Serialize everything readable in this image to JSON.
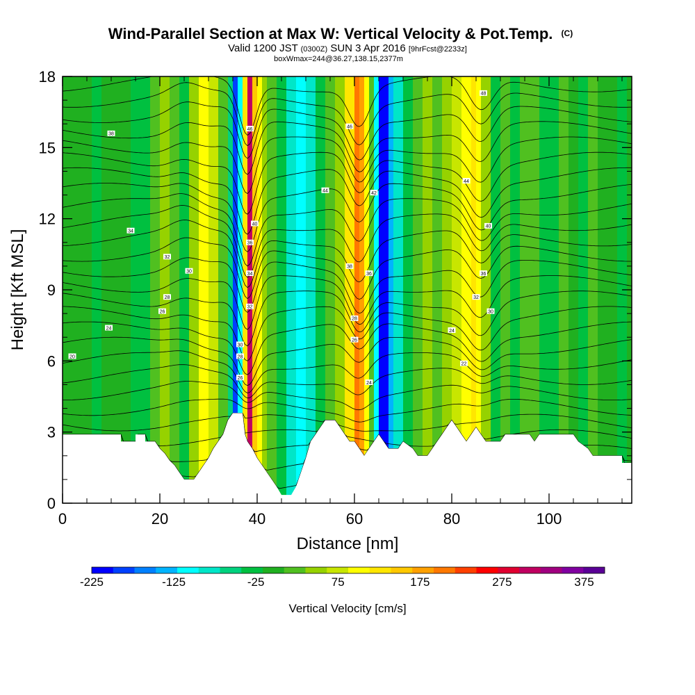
{
  "chart_data": {
    "type": "heatmap",
    "title": "Wind-Parallel Section at Max W: Vertical Velocity & Pot.Temp.",
    "title_mark": "(C)",
    "subtitle": {
      "valid_prefix": "Valid 1200 JST",
      "utc": "(0300Z)",
      "date": "SUN 3 Apr 2016",
      "forecast": "[9hrFcst@2233z]"
    },
    "box_line": "boxWmax=244@36.27,138.15,2377m",
    "xlabel": "Distance [nm]",
    "ylabel": "Height [Kft MSL]",
    "xlim": [
      0,
      117
    ],
    "ylim": [
      0,
      18
    ],
    "x_ticks": [
      "0",
      "20",
      "40",
      "60",
      "80",
      "100"
    ],
    "y_ticks": [
      "0",
      "3",
      "6",
      "9",
      "12",
      "15",
      "18"
    ],
    "colorbar": {
      "label": "Vertical Velocity [cm/s]",
      "range": [
        -225,
        400
      ],
      "tick_labels": [
        "-225",
        "-125",
        "-25",
        "75",
        "175",
        "275",
        "375"
      ],
      "colors": [
        "#0000ff",
        "#0040ff",
        "#0080ff",
        "#00b4ff",
        "#00ffff",
        "#00e6c8",
        "#00d27e",
        "#00c040",
        "#20b020",
        "#50c020",
        "#96d200",
        "#c8e600",
        "#ffff00",
        "#ffe600",
        "#ffc800",
        "#ffa000",
        "#ff7800",
        "#ff4000",
        "#ff0000",
        "#e00030",
        "#c00060",
        "#a00080",
        "#8000a0",
        "#5a0096"
      ]
    },
    "color_bands": [
      {
        "x": 0,
        "w": -10
      },
      {
        "x": 2,
        "w": -15
      },
      {
        "x": 4,
        "w": -8
      },
      {
        "x": 6,
        "w": -20
      },
      {
        "x": 8,
        "w": -5
      },
      {
        "x": 10,
        "w": -12
      },
      {
        "x": 12,
        "w": 8
      },
      {
        "x": 14,
        "w": -18
      },
      {
        "x": 16,
        "w": -25
      },
      {
        "x": 18,
        "w": 35
      },
      {
        "x": 20,
        "w": 50
      },
      {
        "x": 22,
        "w": 10
      },
      {
        "x": 24,
        "w": -30
      },
      {
        "x": 26,
        "w": 40
      },
      {
        "x": 28,
        "w": 90
      },
      {
        "x": 30,
        "w": 70
      },
      {
        "x": 32,
        "w": 20
      },
      {
        "x": 34,
        "w": -60
      },
      {
        "x": 35,
        "w": -180
      },
      {
        "x": 36,
        "w": -120
      },
      {
        "x": 37,
        "w": 130
      },
      {
        "x": 38,
        "w": 300
      },
      {
        "x": 39,
        "w": 150
      },
      {
        "x": 40,
        "w": 110
      },
      {
        "x": 41,
        "w": 60
      },
      {
        "x": 42,
        "w": 30
      },
      {
        "x": 44,
        "w": -40
      },
      {
        "x": 46,
        "w": -90
      },
      {
        "x": 48,
        "w": -110
      },
      {
        "x": 50,
        "w": -70
      },
      {
        "x": 52,
        "w": -30
      },
      {
        "x": 54,
        "w": 20
      },
      {
        "x": 56,
        "w": 60
      },
      {
        "x": 58,
        "w": 120
      },
      {
        "x": 60,
        "w": 200
      },
      {
        "x": 61,
        "w": 180
      },
      {
        "x": 62,
        "w": 110
      },
      {
        "x": 63,
        "w": 30
      },
      {
        "x": 64,
        "w": -120
      },
      {
        "x": 65,
        "w": -220
      },
      {
        "x": 66,
        "w": -200
      },
      {
        "x": 67,
        "w": -140
      },
      {
        "x": 68,
        "w": -80
      },
      {
        "x": 70,
        "w": -40
      },
      {
        "x": 72,
        "w": 10
      },
      {
        "x": 74,
        "w": 40
      },
      {
        "x": 76,
        "w": 20
      },
      {
        "x": 78,
        "w": 50
      },
      {
        "x": 80,
        "w": 80
      },
      {
        "x": 82,
        "w": 100
      },
      {
        "x": 84,
        "w": 130
      },
      {
        "x": 85,
        "w": 110
      },
      {
        "x": 86,
        "w": 50
      },
      {
        "x": 88,
        "w": -20
      },
      {
        "x": 90,
        "w": 20
      },
      {
        "x": 92,
        "w": -40
      },
      {
        "x": 94,
        "w": 10
      },
      {
        "x": 96,
        "w": 30
      },
      {
        "x": 98,
        "w": -20
      },
      {
        "x": 100,
        "w": -35
      },
      {
        "x": 102,
        "w": 15
      },
      {
        "x": 104,
        "w": -10
      },
      {
        "x": 106,
        "w": -25
      },
      {
        "x": 108,
        "w": 10
      },
      {
        "x": 110,
        "w": -15
      },
      {
        "x": 112,
        "w": -5
      },
      {
        "x": 114,
        "w": -20
      },
      {
        "x": 116,
        "w": -10
      },
      {
        "x": 117,
        "w": -10
      }
    ],
    "terrain": [
      [
        0,
        2.9
      ],
      [
        12,
        2.9
      ],
      [
        12,
        2.6
      ],
      [
        15,
        2.6
      ],
      [
        15,
        2.9
      ],
      [
        17,
        2.9
      ],
      [
        17,
        2.6
      ],
      [
        19,
        2.6
      ],
      [
        20,
        2.3
      ],
      [
        21,
        2.1
      ],
      [
        22,
        1.8
      ],
      [
        23,
        1.6
      ],
      [
        24,
        1.3
      ],
      [
        25,
        1.0
      ],
      [
        27,
        1.0
      ],
      [
        28,
        1.3
      ],
      [
        29,
        1.6
      ],
      [
        30,
        1.9
      ],
      [
        31,
        2.3
      ],
      [
        32,
        2.6
      ],
      [
        33,
        2.9
      ],
      [
        34,
        3.5
      ],
      [
        35,
        3.8
      ],
      [
        37,
        3.8
      ],
      [
        37.5,
        2.9
      ],
      [
        38,
        2.6
      ],
      [
        39,
        2.3
      ],
      [
        40,
        1.9
      ],
      [
        41,
        1.6
      ],
      [
        42,
        1.3
      ],
      [
        43,
        1.0
      ],
      [
        44,
        0.7
      ],
      [
        45,
        0.35
      ],
      [
        47,
        0.35
      ],
      [
        48,
        0.7
      ],
      [
        49,
        1.3
      ],
      [
        50,
        1.9
      ],
      [
        51,
        2.6
      ],
      [
        52,
        2.9
      ],
      [
        53,
        3.2
      ],
      [
        54,
        3.5
      ],
      [
        56,
        3.5
      ],
      [
        57,
        3.2
      ],
      [
        58,
        2.9
      ],
      [
        59,
        2.6
      ],
      [
        60,
        2.6
      ],
      [
        61,
        2.3
      ],
      [
        62,
        2.0
      ],
      [
        63,
        2.3
      ],
      [
        64,
        2.6
      ],
      [
        65,
        2.9
      ],
      [
        66,
        2.6
      ],
      [
        67,
        2.3
      ],
      [
        69,
        2.3
      ],
      [
        70,
        2.6
      ],
      [
        72,
        2.3
      ],
      [
        73,
        2.0
      ],
      [
        75,
        2.0
      ],
      [
        76,
        2.3
      ],
      [
        78,
        2.9
      ],
      [
        79,
        3.2
      ],
      [
        80,
        3.5
      ],
      [
        81,
        3.2
      ],
      [
        82,
        2.9
      ],
      [
        83,
        2.6
      ],
      [
        84,
        2.9
      ],
      [
        85,
        3.2
      ],
      [
        86,
        2.9
      ],
      [
        87,
        2.6
      ],
      [
        90,
        2.6
      ],
      [
        91,
        2.9
      ],
      [
        96,
        2.9
      ],
      [
        97,
        2.6
      ],
      [
        98,
        2.9
      ],
      [
        105,
        2.9
      ],
      [
        106,
        2.6
      ],
      [
        108,
        2.3
      ],
      [
        109,
        2.0
      ],
      [
        115,
        2.0
      ],
      [
        115,
        1.7
      ],
      [
        117,
        1.7
      ]
    ],
    "contour_labels": [
      {
        "x": 10,
        "y": 15.6,
        "text": "38"
      },
      {
        "x": 14,
        "y": 11.5,
        "text": "34"
      },
      {
        "x": 21.5,
        "y": 10.4,
        "text": "32"
      },
      {
        "x": 26,
        "y": 9.8,
        "text": "30"
      },
      {
        "x": 21.5,
        "y": 8.7,
        "text": "28"
      },
      {
        "x": 20.5,
        "y": 8.1,
        "text": "26"
      },
      {
        "x": 9.5,
        "y": 7.4,
        "text": "24"
      },
      {
        "x": 2,
        "y": 6.2,
        "text": "20"
      },
      {
        "x": 38.5,
        "y": 15.8,
        "text": "46"
      },
      {
        "x": 39.5,
        "y": 11.8,
        "text": "40"
      },
      {
        "x": 38.5,
        "y": 11.0,
        "text": "36"
      },
      {
        "x": 38.5,
        "y": 9.7,
        "text": "34"
      },
      {
        "x": 38.5,
        "y": 8.3,
        "text": "32"
      },
      {
        "x": 36.5,
        "y": 6.7,
        "text": "30"
      },
      {
        "x": 36.5,
        "y": 6.2,
        "text": "28"
      },
      {
        "x": 36.5,
        "y": 5.3,
        "text": "26"
      },
      {
        "x": 54,
        "y": 13.2,
        "text": "44"
      },
      {
        "x": 59,
        "y": 15.9,
        "text": "46"
      },
      {
        "x": 64,
        "y": 13.1,
        "text": "42"
      },
      {
        "x": 59,
        "y": 10.0,
        "text": "38"
      },
      {
        "x": 63,
        "y": 9.7,
        "text": "36"
      },
      {
        "x": 60,
        "y": 7.8,
        "text": "28"
      },
      {
        "x": 60,
        "y": 6.9,
        "text": "26"
      },
      {
        "x": 63,
        "y": 5.1,
        "text": "24"
      },
      {
        "x": 86.5,
        "y": 17.3,
        "text": "48"
      },
      {
        "x": 83,
        "y": 13.6,
        "text": "44"
      },
      {
        "x": 87.5,
        "y": 11.7,
        "text": "40"
      },
      {
        "x": 86.5,
        "y": 9.7,
        "text": "36"
      },
      {
        "x": 85,
        "y": 8.7,
        "text": "32"
      },
      {
        "x": 88,
        "y": 8.1,
        "text": "30"
      },
      {
        "x": 80,
        "y": 7.3,
        "text": "24"
      },
      {
        "x": 82.5,
        "y": 5.9,
        "text": "22"
      }
    ],
    "grid": false,
    "legend": "bottom"
  }
}
